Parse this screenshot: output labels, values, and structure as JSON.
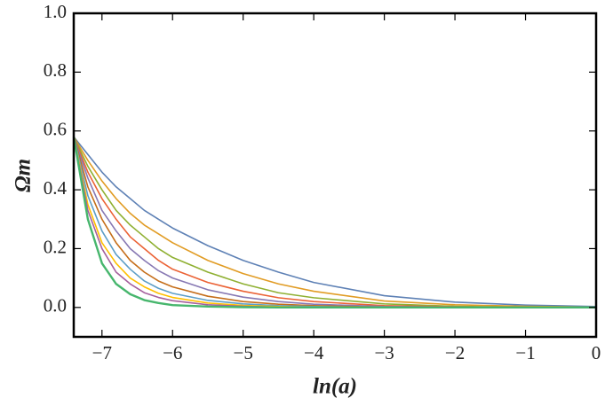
{
  "chart_data": {
    "type": "line",
    "xlabel": "ln(a)",
    "ylabel": "Ωm",
    "x": [
      -7.4,
      -7.2,
      -7,
      -6.8,
      -6.6,
      -6.4,
      -6.2,
      -6,
      -5.5,
      -5,
      -4.5,
      -4,
      -3,
      -2,
      -1,
      0
    ],
    "series": [
      {
        "color": "#5e81b5",
        "values": [
          0.58,
          0.52,
          0.46,
          0.41,
          0.37,
          0.33,
          0.3,
          0.27,
          0.21,
          0.16,
          0.12,
          0.085,
          0.04,
          0.018,
          0.008,
          0.003
        ]
      },
      {
        "color": "#e19c24",
        "values": [
          0.58,
          0.5,
          0.43,
          0.37,
          0.32,
          0.28,
          0.25,
          0.22,
          0.16,
          0.115,
          0.08,
          0.055,
          0.022,
          0.009,
          0.004,
          0.001
        ]
      },
      {
        "color": "#8fb032",
        "values": [
          0.58,
          0.48,
          0.4,
          0.33,
          0.28,
          0.24,
          0.2,
          0.17,
          0.12,
          0.08,
          0.05,
          0.033,
          0.012,
          0.004,
          0.001,
          0
        ]
      },
      {
        "color": "#eb6235",
        "values": [
          0.58,
          0.46,
          0.37,
          0.3,
          0.24,
          0.2,
          0.16,
          0.13,
          0.085,
          0.055,
          0.033,
          0.02,
          0.006,
          0.002,
          0,
          0
        ]
      },
      {
        "color": "#8778b3",
        "values": [
          0.58,
          0.44,
          0.33,
          0.26,
          0.2,
          0.16,
          0.125,
          0.1,
          0.06,
          0.035,
          0.02,
          0.011,
          0.003,
          0.001,
          0,
          0
        ]
      },
      {
        "color": "#c56e1a",
        "values": [
          0.58,
          0.41,
          0.3,
          0.22,
          0.16,
          0.12,
          0.09,
          0.07,
          0.038,
          0.02,
          0.011,
          0.006,
          0.001,
          0,
          0,
          0
        ]
      },
      {
        "color": "#5d9ec7",
        "values": [
          0.58,
          0.38,
          0.26,
          0.18,
          0.13,
          0.09,
          0.065,
          0.048,
          0.024,
          0.012,
          0.006,
          0.003,
          0,
          0,
          0,
          0
        ]
      },
      {
        "color": "#ffbf00",
        "values": [
          0.58,
          0.35,
          0.22,
          0.15,
          0.1,
          0.07,
          0.048,
          0.034,
          0.015,
          0.007,
          0.003,
          0.001,
          0,
          0,
          0,
          0
        ]
      },
      {
        "color": "#a5609d",
        "values": [
          0.58,
          0.33,
          0.2,
          0.12,
          0.08,
          0.05,
          0.034,
          0.023,
          0.009,
          0.004,
          0.001,
          0,
          0,
          0,
          0,
          0
        ]
      },
      {
        "color": "#47b66d",
        "values": [
          0.58,
          0.3,
          0.15,
          0.08,
          0.045,
          0.025,
          0.015,
          0.008,
          0.003,
          0.001,
          0,
          0,
          0,
          0,
          0,
          0
        ]
      }
    ],
    "xlim": [
      -7.4,
      0
    ],
    "ylim": [
      -0.1,
      1.0
    ],
    "xticks": [
      {
        "value": -7,
        "label": "−7"
      },
      {
        "value": -6,
        "label": "−6"
      },
      {
        "value": -5,
        "label": "−5"
      },
      {
        "value": -4,
        "label": "−4"
      },
      {
        "value": -3,
        "label": "−3"
      },
      {
        "value": -2,
        "label": "−2"
      },
      {
        "value": -1,
        "label": "−1"
      },
      0
    ],
    "yticks": [
      {
        "value": 0,
        "label": "0.0"
      },
      0.2,
      0.4,
      0.6,
      0.8,
      {
        "value": 1,
        "label": "1.0"
      }
    ]
  }
}
